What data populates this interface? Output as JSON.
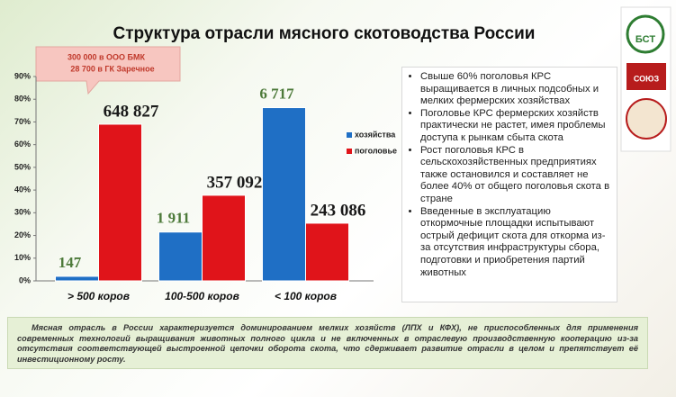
{
  "chart_data": {
    "type": "bar",
    "title": "Структура отрасли мясного скотоводства России",
    "categories": [
      "> 500 коров",
      "100-500 коров",
      "< 100 коров"
    ],
    "series": [
      {
        "name": "хозяйства",
        "color": "#1f6fc5",
        "values": [
          2,
          21.5,
          76.3
        ],
        "labels": [
          "147",
          "1 911",
          "6 717"
        ],
        "label_color": "#4d7a3a"
      },
      {
        "name": "поголовье",
        "color": "#e0141a",
        "values": [
          69,
          37.7,
          25.4
        ],
        "labels": [
          "648 827",
          "357 092",
          "243 086"
        ],
        "label_color": "#1a1a1a"
      }
    ],
    "ylim": [
      0,
      90
    ],
    "yticks": [
      {
        "value": 0,
        "label": "0%"
      },
      {
        "value": 10,
        "label": "10%"
      },
      {
        "value": 20,
        "label": "20%"
      },
      {
        "value": 30,
        "label": "30%"
      },
      {
        "value": 40,
        "label": "40%"
      },
      {
        "value": 50,
        "label": "50%"
      },
      {
        "value": 60,
        "label": "60%"
      },
      {
        "value": 70,
        "label": "70%"
      },
      {
        "value": 80,
        "label": "80%"
      },
      {
        "value": 90,
        "label": "90%"
      }
    ],
    "callout": [
      "300  000 в ООО БМК",
      "28 700 в ГК Заречное"
    ]
  },
  "bullets": [
    "Свыше 60% поголовья КРС выращивается в личных подсобных и мелких фермерских  хозяйствах",
    "Поголовье КРС фермерских хозяйств практически не растет, имея проблемы доступа к рынкам сбыта скота",
    "Рост поголовья КРС в сельскохозяйственных предприятиях также остановился и составляет не более 40% от общего поголовья скота в стране",
    "Введенные в эксплуатацию откормочные площадки испытывают острый дефицит скота для откорма из-за отсутствия инфраструктуры сбора, подготовки и приобретения партий животных"
  ],
  "footer": "Мясная отрасль в России характеризуется доминированием мелких хозяйств (ЛПХ и КФХ),  не приспособленных для применения современных технологий выращивания животных полного цикла и не включенных в отраслевую производственную кооперацию из-за отсутствия соответствующей выстроенной цепочки оборота скота, что сдерживает развитие отрасли в целом и препятствует её инвестиционному росту.",
  "logos": [
    "БСТ",
    "СОЮЗ"
  ]
}
